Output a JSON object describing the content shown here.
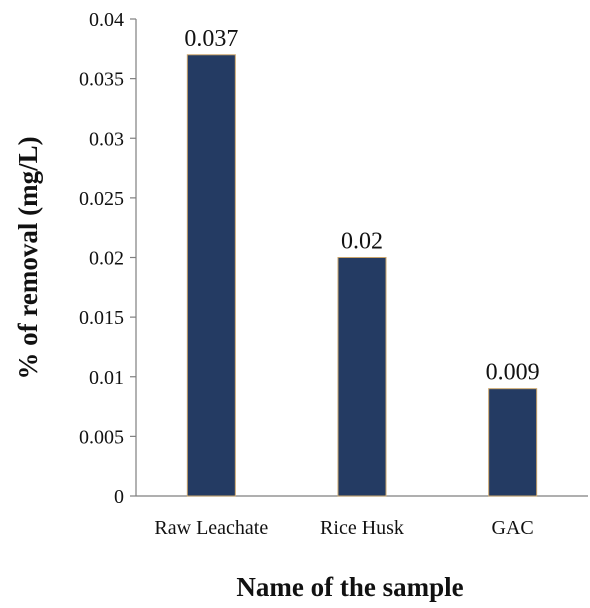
{
  "chart_data": {
    "type": "bar",
    "title": "",
    "xlabel": "Name of the sample",
    "ylabel": "% of removal (mg/L)",
    "categories": [
      "Raw Leachate",
      "Rice Husk",
      "GAC"
    ],
    "values": [
      0.037,
      0.02,
      0.009
    ],
    "value_labels": [
      "0.037",
      "0.02",
      "0.009"
    ],
    "ylim": [
      0,
      0.04
    ],
    "y_ticks": [
      0,
      0.005,
      0.01,
      0.015,
      0.02,
      0.025,
      0.03,
      0.035,
      0.04
    ],
    "y_tick_labels": [
      "0",
      "0.005",
      "0.01",
      "0.015",
      "0.02",
      "0.025",
      "0.03",
      "0.035",
      "0.04"
    ],
    "grid": false,
    "legend": "none",
    "bar_color": "#243b63",
    "bar_edge_color": "#c9a46b"
  }
}
